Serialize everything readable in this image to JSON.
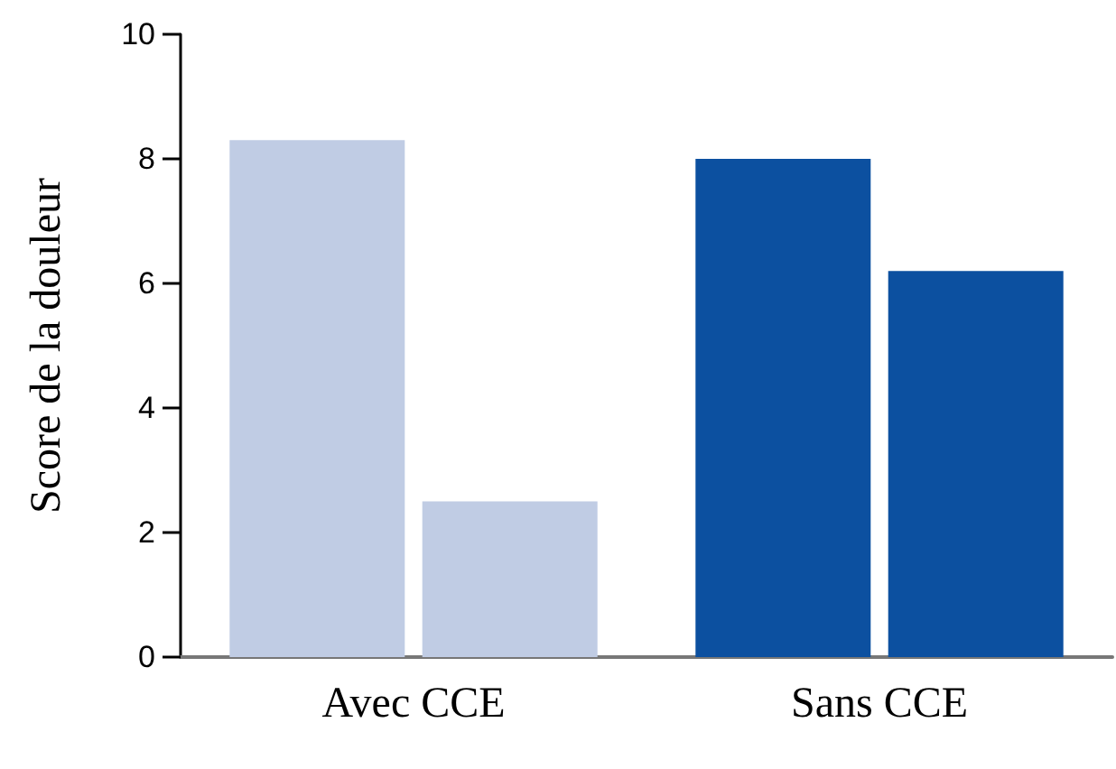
{
  "chart_data": {
    "type": "bar",
    "ylabel": "Score de la douleur",
    "categories": [
      "Avec CCE",
      "Sans CCE"
    ],
    "series": [
      {
        "values": [
          8.3,
          8.0
        ],
        "colors": [
          "#c0cce4",
          "#0c50a0"
        ]
      },
      {
        "values": [
          2.5,
          6.2
        ],
        "colors": [
          "#c0cce4",
          "#0c50a0"
        ]
      }
    ],
    "ylim": [
      0,
      10
    ],
    "yticks": [
      0,
      2,
      4,
      6,
      8,
      10
    ],
    "grid": false
  }
}
